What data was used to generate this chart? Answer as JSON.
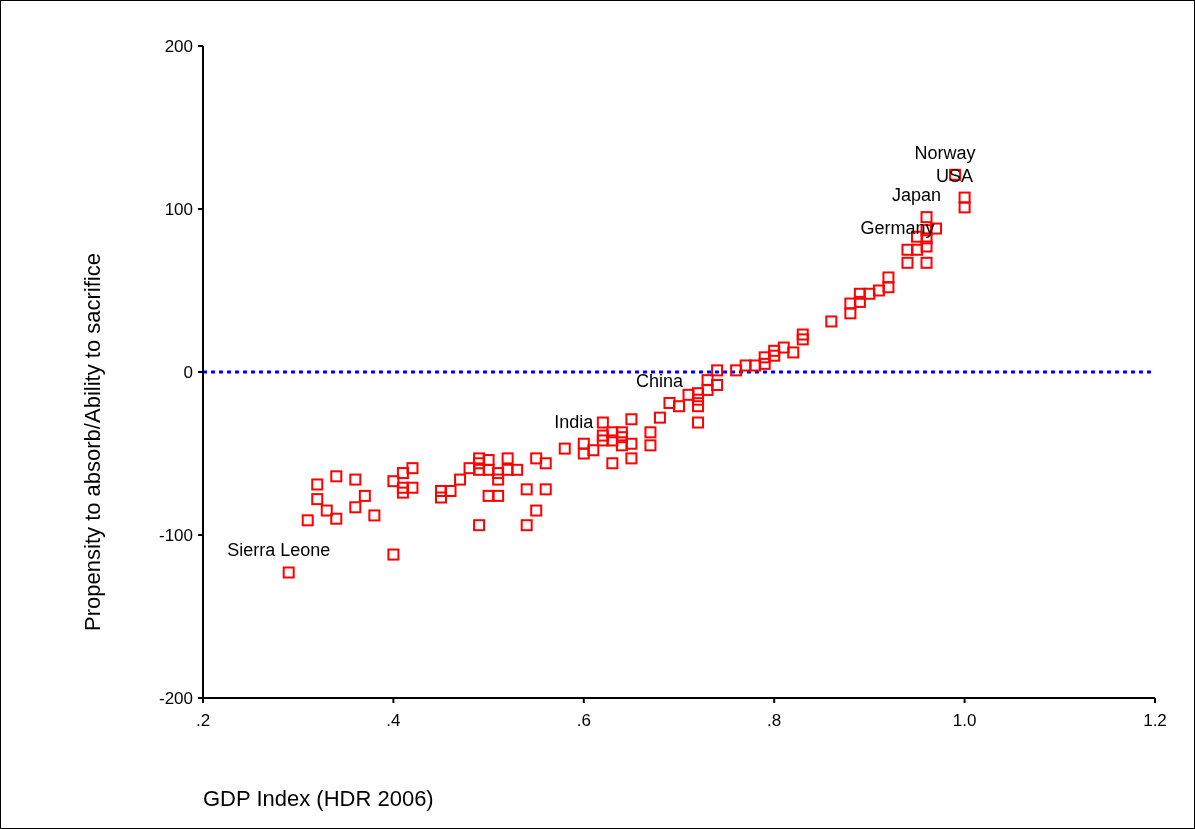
{
  "chart_data": {
    "type": "scatter",
    "xlabel": "GDP Index (HDR 2006)",
    "ylabel": "Propensity to absorb/Ability to sacrifice",
    "xlim": [
      0.2,
      1.2
    ],
    "xticks": [
      {
        "value": 0.2,
        "label": ".2"
      },
      {
        "value": 0.4,
        "label": ".4"
      },
      {
        "value": 0.6,
        "label": ".6"
      },
      {
        "value": 0.8,
        "label": ".8"
      },
      {
        "value": 1.0,
        "label": "1.0"
      },
      {
        "value": 1.2,
        "label": "1.2"
      }
    ],
    "ylim": [
      -200,
      200
    ],
    "yticks": [
      -200,
      -100,
      0,
      100,
      200
    ],
    "grid": false,
    "marker": "square",
    "ref_lines": [
      {
        "axis": "y",
        "value": 0,
        "color": "#0000ff",
        "line_style": "dotted"
      }
    ],
    "annotations": [
      {
        "text": "Sierra Leone",
        "x": 0.29,
        "y": -123
      },
      {
        "text": "India",
        "x": 0.6,
        "y": -44
      },
      {
        "text": "China",
        "x": 0.69,
        "y": -19
      },
      {
        "text": "Germany",
        "x": 0.94,
        "y": 75
      },
      {
        "text": "Japan",
        "x": 0.96,
        "y": 95
      },
      {
        "text": "USA",
        "x": 1.0,
        "y": 107
      },
      {
        "text": "Norway",
        "x": 0.99,
        "y": 121
      }
    ],
    "series": [
      {
        "color": "#ff0000",
        "x": [
          0.29,
          0.31,
          0.32,
          0.32,
          0.34,
          0.33,
          0.34,
          0.36,
          0.36,
          0.37,
          0.38,
          0.4,
          0.4,
          0.41,
          0.42,
          0.42,
          0.41,
          0.41,
          0.45,
          0.45,
          0.46,
          0.47,
          0.49,
          0.48,
          0.49,
          0.49,
          0.5,
          0.5,
          0.51,
          0.51,
          0.52,
          0.52,
          0.53,
          0.5,
          0.51,
          0.49,
          0.54,
          0.54,
          0.55,
          0.56,
          0.55,
          0.56,
          0.58,
          0.6,
          0.6,
          0.61,
          0.62,
          0.62,
          0.62,
          0.63,
          0.63,
          0.64,
          0.64,
          0.64,
          0.65,
          0.65,
          0.63,
          0.65,
          0.67,
          0.67,
          0.68,
          0.69,
          0.7,
          0.71,
          0.72,
          0.72,
          0.72,
          0.72,
          0.73,
          0.73,
          0.74,
          0.74,
          0.76,
          0.77,
          0.78,
          0.79,
          0.79,
          0.8,
          0.8,
          0.81,
          0.82,
          0.83,
          0.83,
          0.86,
          0.88,
          0.88,
          0.89,
          0.89,
          0.9,
          0.91,
          0.92,
          0.92,
          0.94,
          0.94,
          0.95,
          0.95,
          0.96,
          0.96,
          0.96,
          0.96,
          0.96,
          0.97,
          0.99,
          1.0,
          1.0
        ],
        "values": [
          -123,
          -91,
          -69,
          -78,
          -64,
          -85,
          -90,
          -66,
          -83,
          -76,
          -88,
          -67,
          -112,
          -62,
          -59,
          -71,
          -74,
          -71,
          -77,
          -73,
          -73,
          -66,
          -53,
          -59,
          -56,
          -60,
          -54,
          -60,
          -62,
          -66,
          -53,
          -60,
          -60,
          -76,
          -76,
          -94,
          -72,
          -94,
          -53,
          -56,
          -85,
          -72,
          -47,
          -44,
          -50,
          -48,
          -31,
          -39,
          -42,
          -37,
          -42,
          -37,
          -40,
          -45,
          -29,
          -44,
          -56,
          -53,
          -37,
          -45,
          -28,
          -19,
          -21,
          -14,
          -13,
          -17,
          -21,
          -31,
          -5,
          -11,
          -8,
          1,
          1,
          4,
          4,
          9,
          5,
          13,
          10,
          15,
          12,
          23,
          20,
          31,
          36,
          42,
          43,
          48,
          48,
          50,
          52,
          58,
          75,
          67,
          75,
          83,
          77,
          82,
          87,
          95,
          67,
          88,
          121,
          107,
          101
        ]
      }
    ]
  }
}
